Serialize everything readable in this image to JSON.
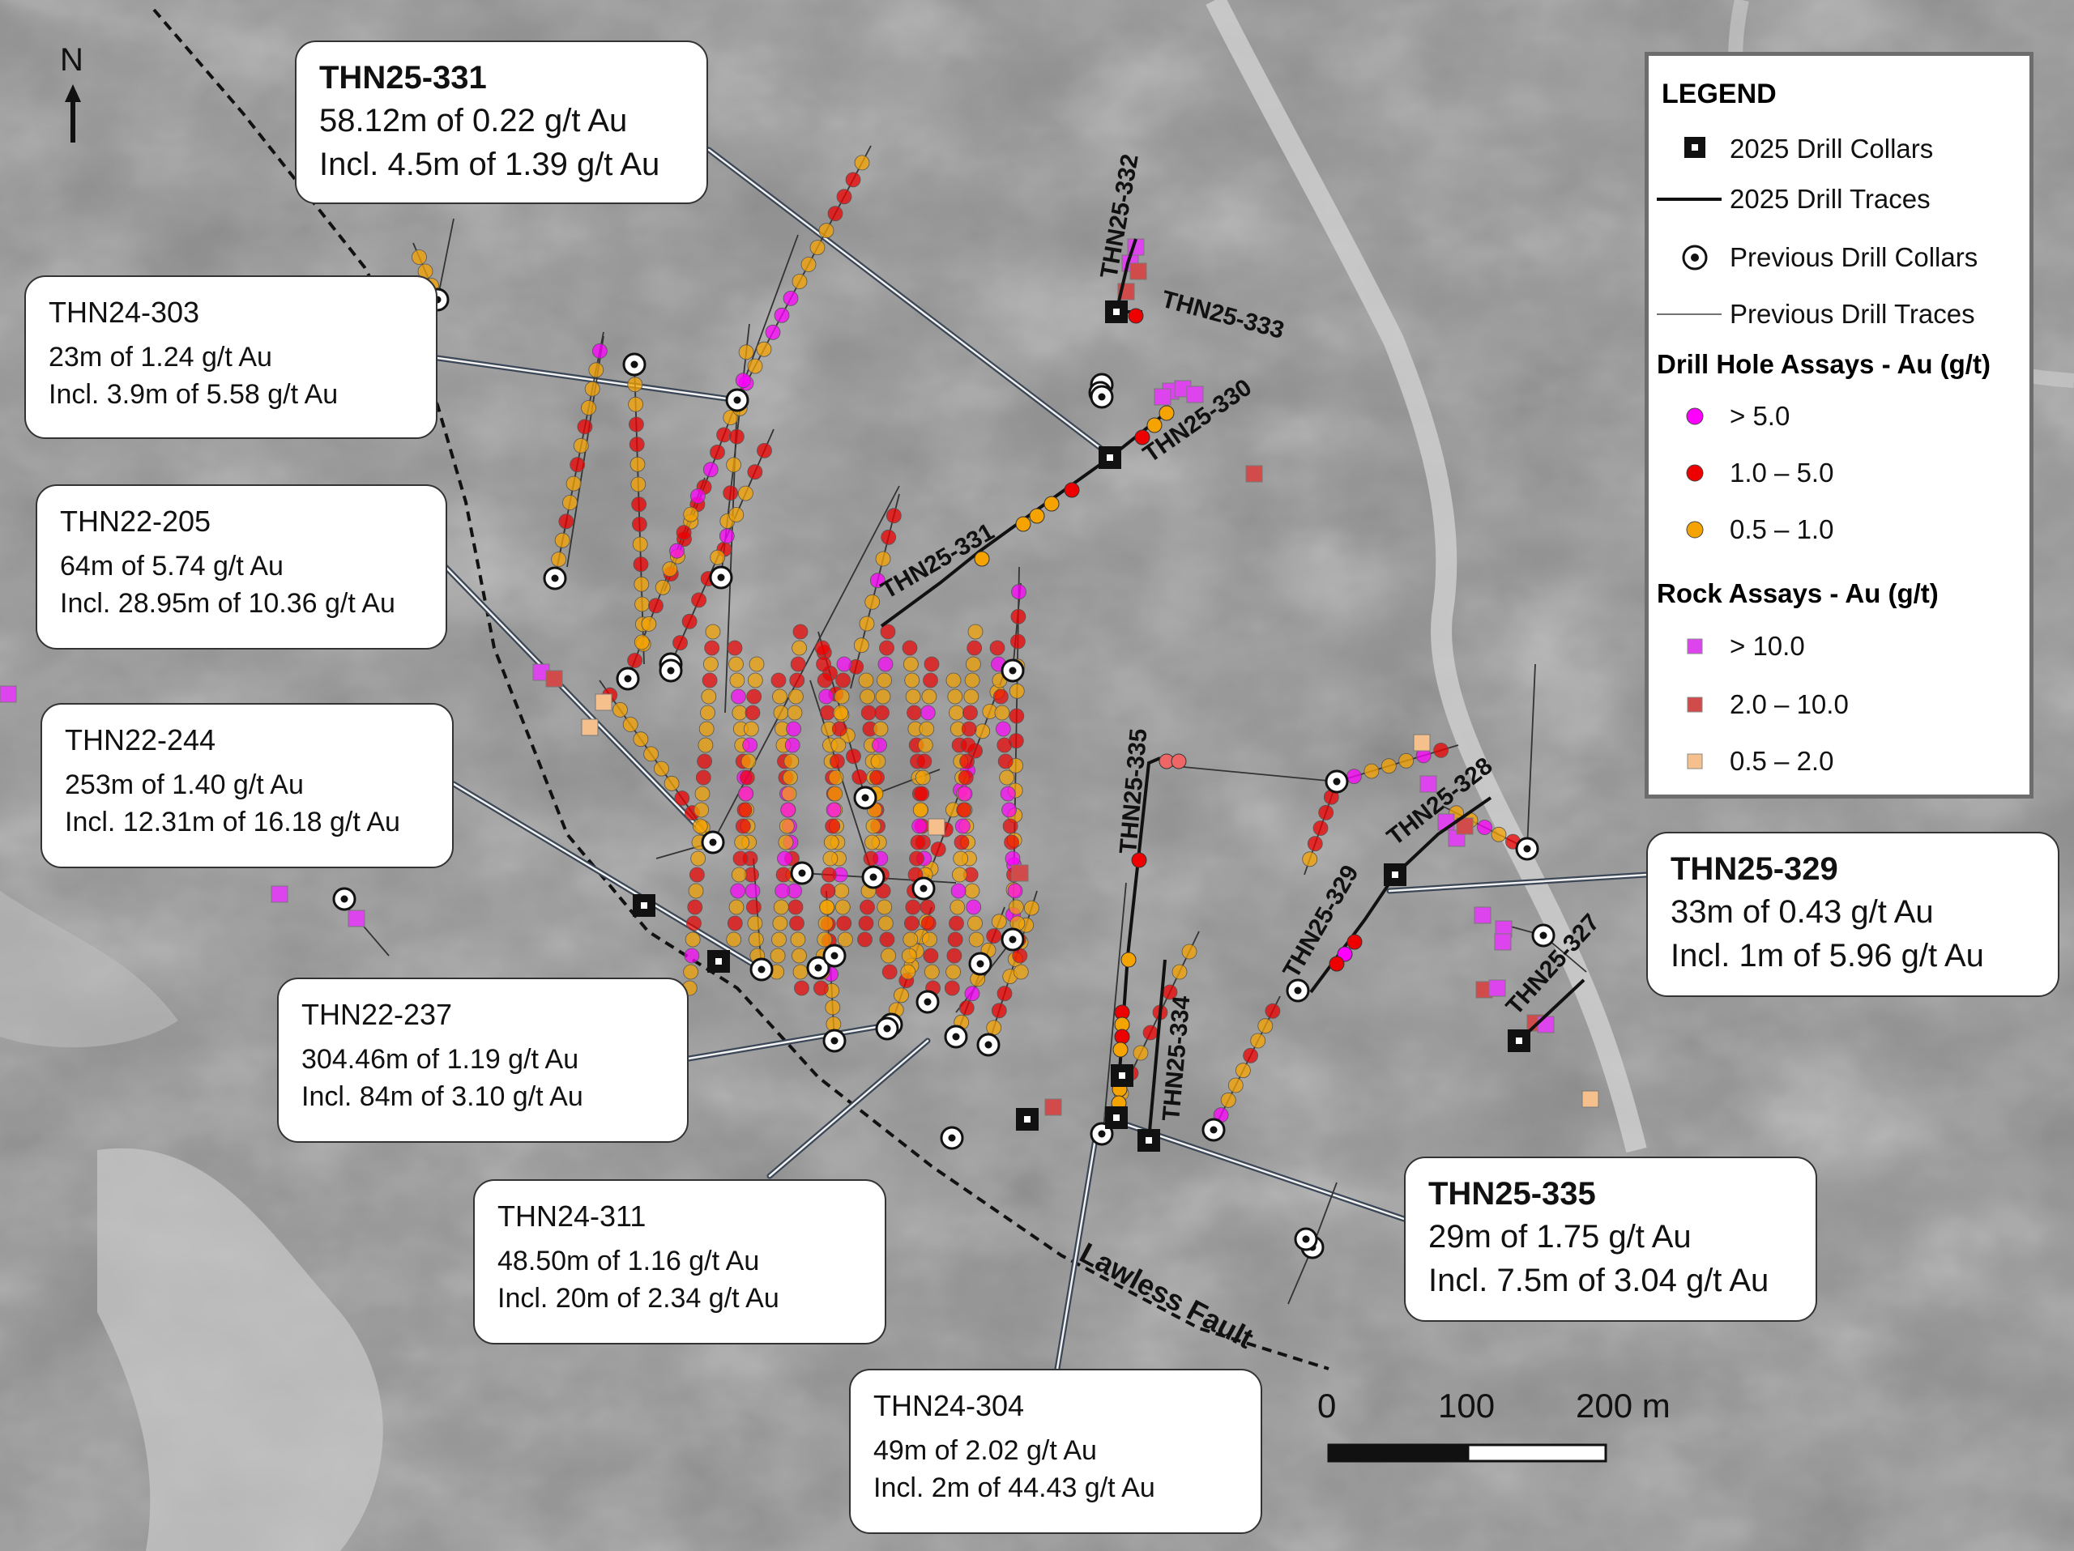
{
  "north_label": "N",
  "legend": {
    "title": "LEGEND",
    "items": [
      {
        "label": "2025 Drill Collars",
        "symbol": "collar-2025-icon"
      },
      {
        "label": "2025 Drill Traces",
        "symbol": "trace-2025-line"
      },
      {
        "label": "Previous Drill Collars",
        "symbol": "collar-previous-icon"
      },
      {
        "label": "Previous Drill Traces",
        "symbol": "trace-previous-line"
      }
    ],
    "drill_assays_title": "Drill Hole Assays - Au (g/t)",
    "drill_assays": [
      {
        "label": "> 5.0",
        "color": "#ff00ff"
      },
      {
        "label": "1.0 – 5.0",
        "color": "#ee0000"
      },
      {
        "label": "0.5 – 1.0",
        "color": "#f5a300"
      }
    ],
    "rock_assays_title": "Rock Assays - Au (g/t)",
    "rock_assays": [
      {
        "label": "> 10.0",
        "color": "#dd44ee"
      },
      {
        "label": "2.0 – 10.0",
        "color": "#d24b4b"
      },
      {
        "label": "0.5 – 2.0",
        "color": "#f6c08c"
      }
    ]
  },
  "callouts": {
    "thn25_331": {
      "title": "THN25-331",
      "lines": [
        "58.12m of 0.22 g/t Au",
        "Incl. 4.5m of 1.39 g/t Au"
      ]
    },
    "thn24_303": {
      "title": "THN24-303",
      "lines": [
        "23m of 1.24 g/t Au",
        "Incl. 3.9m of 5.58 g/t Au"
      ]
    },
    "thn22_205": {
      "title": "THN22-205",
      "lines": [
        "64m of 5.74 g/t Au",
        "Incl. 28.95m of 10.36 g/t Au"
      ]
    },
    "thn22_244": {
      "title": "THN22-244",
      "lines": [
        "253m of 1.40 g/t Au",
        "Incl. 12.31m of 16.18 g/t Au"
      ]
    },
    "thn22_237": {
      "title": "THN22-237",
      "lines": [
        "304.46m of 1.19 g/t Au",
        "Incl. 84m of 3.10 g/t Au"
      ]
    },
    "thn24_311": {
      "title": "THN24-311",
      "lines": [
        "48.50m of 1.16 g/t Au",
        "Incl. 20m of 2.34 g/t Au"
      ]
    },
    "thn24_304": {
      "title": "THN24-304",
      "lines": [
        "49m of 2.02 g/t Au",
        "Incl. 2m of 44.43 g/t Au"
      ]
    },
    "thn25_329": {
      "title": "THN25-329",
      "lines": [
        "33m of 0.43 g/t Au",
        "Incl. 1m of 5.96 g/t Au"
      ]
    },
    "thn25_335": {
      "title": "THN25-335",
      "lines": [
        "29m of 1.75 g/t Au",
        "Incl. 7.5m of 3.04 g/t Au"
      ]
    }
  },
  "trace_labels": {
    "t332": "THN25-332",
    "t333": "THN25-333",
    "t330": "THN25-330",
    "t331": "THN25-331",
    "t335": "THN25-335",
    "t334": "THN25-334",
    "t328": "THN25-328",
    "t329": "THN25-329",
    "t327": "THN25-327"
  },
  "fault_label": "Lawless Fault",
  "scale": {
    "ticks": [
      "0",
      "100",
      "200 m"
    ]
  },
  "colors": {
    "assay_high": "#ff00ff",
    "assay_mid": "#ee0000",
    "assay_low": "#f5a300",
    "rock_high": "#dd44ee",
    "rock_mid": "#d24b4b",
    "rock_low": "#f6c08c"
  }
}
